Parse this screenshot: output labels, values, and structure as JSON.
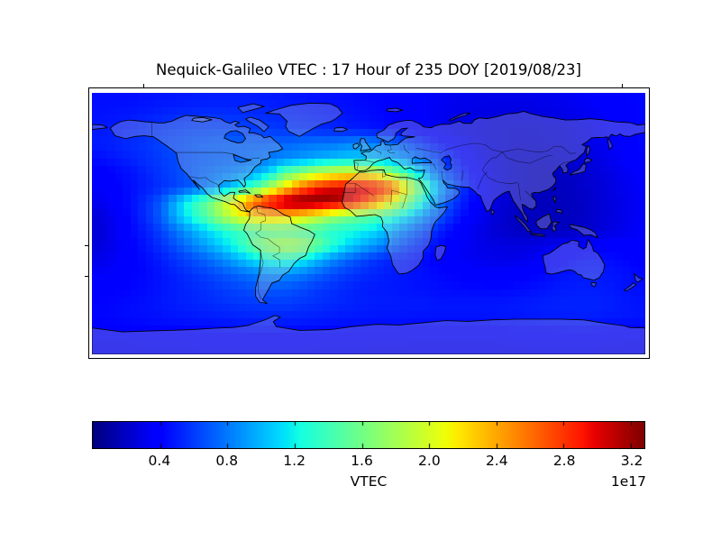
{
  "figure": {
    "title": "Nequick-Galileo VTEC : 17 Hour of 235 DOY [2019/08/23]",
    "background_color": "#ffffff"
  },
  "colorbar": {
    "label": "VTEC",
    "offset_label": "1e17",
    "ticks": [
      "0.4",
      "0.8",
      "1.2",
      "1.6",
      "2.0",
      "2.4",
      "2.8",
      "3.2"
    ],
    "tick_values": [
      0.4,
      0.8,
      1.2,
      1.6,
      2.0,
      2.4,
      2.8,
      3.2
    ],
    "orientation": "horizontal",
    "colormap": "jet"
  },
  "chart_data": {
    "type": "heatmap",
    "title": "Nequick-Galileo VTEC : 17 Hour of 235 DOY [2019/08/23]",
    "colorbar_label": "VTEC",
    "units_exponent": "1e17",
    "colormap": "jet",
    "vmin": 0.0,
    "vmax": 3.28,
    "legend_position": "bottom",
    "grid": false,
    "projection": "equirectangular",
    "lon_range": [
      -180,
      180
    ],
    "lat_range": [
      -90,
      90
    ],
    "cell_size_deg": 10,
    "lat_centers_start": 85,
    "lat_centers_step": -10,
    "lon_centers_start": -175,
    "lon_centers_step": 10,
    "values": [
      [
        0.45,
        0.45,
        0.45,
        0.46,
        0.47,
        0.48,
        0.49,
        0.5,
        0.5,
        0.5,
        0.5,
        0.49,
        0.48,
        0.47,
        0.46,
        0.45,
        0.44,
        0.43,
        0.42,
        0.4,
        0.38,
        0.36,
        0.34,
        0.32,
        0.31,
        0.3,
        0.3,
        0.3,
        0.3,
        0.31,
        0.32,
        0.34,
        0.36,
        0.38,
        0.4,
        0.42
      ],
      [
        0.46,
        0.47,
        0.48,
        0.5,
        0.52,
        0.54,
        0.55,
        0.56,
        0.56,
        0.56,
        0.55,
        0.54,
        0.53,
        0.52,
        0.5,
        0.49,
        0.47,
        0.45,
        0.43,
        0.41,
        0.39,
        0.36,
        0.33,
        0.31,
        0.29,
        0.28,
        0.27,
        0.27,
        0.27,
        0.28,
        0.29,
        0.31,
        0.33,
        0.36,
        0.39,
        0.42
      ],
      [
        0.48,
        0.5,
        0.52,
        0.55,
        0.58,
        0.6,
        0.62,
        0.63,
        0.63,
        0.62,
        0.61,
        0.6,
        0.58,
        0.57,
        0.55,
        0.53,
        0.51,
        0.49,
        0.46,
        0.43,
        0.4,
        0.37,
        0.33,
        0.3,
        0.28,
        0.26,
        0.25,
        0.24,
        0.24,
        0.25,
        0.26,
        0.28,
        0.31,
        0.34,
        0.38,
        0.42
      ],
      [
        0.5,
        0.52,
        0.55,
        0.58,
        0.62,
        0.65,
        0.68,
        0.7,
        0.72,
        0.72,
        0.72,
        0.72,
        0.73,
        0.75,
        0.78,
        0.78,
        0.82,
        0.85,
        0.82,
        0.75,
        0.65,
        0.55,
        0.45,
        0.38,
        0.32,
        0.28,
        0.25,
        0.24,
        0.24,
        0.24,
        0.25,
        0.27,
        0.3,
        0.34,
        0.38,
        0.42
      ],
      [
        0.45,
        0.48,
        0.52,
        0.56,
        0.6,
        0.64,
        0.68,
        0.7,
        0.72,
        0.74,
        0.76,
        0.8,
        0.85,
        0.9,
        0.95,
        1.0,
        1.05,
        1.05,
        1.0,
        0.95,
        0.85,
        0.75,
        0.62,
        0.5,
        0.38,
        0.3,
        0.25,
        0.22,
        0.21,
        0.21,
        0.22,
        0.24,
        0.27,
        0.31,
        0.35,
        0.4
      ],
      [
        0.38,
        0.42,
        0.46,
        0.52,
        0.58,
        0.64,
        0.7,
        0.75,
        0.8,
        0.85,
        0.95,
        1.1,
        1.5,
        1.7,
        1.9,
        2.0,
        2.1,
        2.1,
        2.0,
        1.7,
        1.4,
        1.05,
        0.75,
        0.58,
        0.45,
        0.34,
        0.26,
        0.22,
        0.19,
        0.18,
        0.19,
        0.21,
        0.24,
        0.28,
        0.32,
        0.36
      ],
      [
        0.35,
        0.4,
        0.45,
        0.5,
        0.56,
        0.62,
        0.7,
        0.8,
        0.95,
        1.15,
        1.4,
        1.8,
        2.2,
        2.6,
        2.85,
        3.0,
        3.05,
        3.05,
        2.95,
        2.7,
        2.1,
        1.5,
        1.0,
        0.7,
        0.5,
        0.36,
        0.27,
        0.22,
        0.19,
        0.18,
        0.18,
        0.2,
        0.23,
        0.27,
        0.31,
        0.35
      ],
      [
        0.32,
        0.38,
        0.45,
        0.55,
        0.7,
        1.0,
        1.3,
        1.55,
        1.9,
        2.3,
        2.7,
        3.0,
        3.2,
        3.3,
        3.3,
        3.25,
        3.1,
        2.85,
        2.5,
        2.1,
        1.65,
        1.2,
        0.85,
        0.6,
        0.45,
        0.34,
        0.26,
        0.21,
        0.18,
        0.17,
        0.17,
        0.19,
        0.22,
        0.26,
        0.3,
        0.34
      ],
      [
        0.25,
        0.34,
        0.44,
        0.55,
        0.72,
        1.0,
        1.25,
        1.5,
        1.8,
        2.05,
        2.25,
        2.35,
        2.3,
        2.2,
        2.0,
        1.8,
        1.65,
        1.55,
        1.45,
        1.3,
        1.1,
        0.9,
        0.7,
        0.52,
        0.4,
        0.31,
        0.24,
        0.2,
        0.18,
        0.17,
        0.17,
        0.19,
        0.22,
        0.26,
        0.3,
        0.34
      ],
      [
        0.25,
        0.33,
        0.42,
        0.5,
        0.62,
        0.78,
        0.95,
        1.1,
        1.25,
        1.35,
        1.45,
        1.5,
        1.5,
        1.45,
        1.4,
        1.3,
        1.25,
        1.2,
        1.1,
        0.95,
        0.8,
        0.65,
        0.52,
        0.42,
        0.34,
        0.28,
        0.23,
        0.2,
        0.18,
        0.18,
        0.18,
        0.2,
        0.23,
        0.27,
        0.31,
        0.35
      ],
      [
        0.26,
        0.32,
        0.4,
        0.47,
        0.56,
        0.68,
        0.82,
        0.95,
        1.1,
        1.3,
        1.55,
        1.75,
        1.85,
        1.8,
        1.6,
        1.35,
        1.15,
        1.0,
        0.88,
        0.75,
        0.62,
        0.52,
        0.44,
        0.38,
        0.33,
        0.3,
        0.28,
        0.27,
        0.28,
        0.3,
        0.33,
        0.36,
        0.38,
        0.38,
        0.37,
        0.36
      ],
      [
        0.3,
        0.34,
        0.39,
        0.44,
        0.5,
        0.57,
        0.65,
        0.74,
        0.85,
        0.98,
        1.12,
        1.25,
        1.3,
        1.22,
        1.05,
        0.88,
        0.75,
        0.65,
        0.57,
        0.52,
        0.48,
        0.44,
        0.4,
        0.36,
        0.33,
        0.31,
        0.3,
        0.3,
        0.32,
        0.36,
        0.4,
        0.44,
        0.46,
        0.45,
        0.43,
        0.4
      ],
      [
        0.35,
        0.37,
        0.4,
        0.43,
        0.47,
        0.52,
        0.57,
        0.62,
        0.68,
        0.74,
        0.8,
        0.85,
        0.86,
        0.82,
        0.74,
        0.66,
        0.6,
        0.55,
        0.52,
        0.49,
        0.47,
        0.45,
        0.43,
        0.41,
        0.39,
        0.38,
        0.37,
        0.38,
        0.4,
        0.43,
        0.46,
        0.48,
        0.49,
        0.48,
        0.46,
        0.43
      ],
      [
        0.38,
        0.4,
        0.42,
        0.44,
        0.47,
        0.5,
        0.53,
        0.56,
        0.6,
        0.63,
        0.66,
        0.68,
        0.68,
        0.65,
        0.6,
        0.56,
        0.53,
        0.5,
        0.49,
        0.48,
        0.47,
        0.46,
        0.45,
        0.44,
        0.43,
        0.43,
        0.43,
        0.44,
        0.45,
        0.47,
        0.49,
        0.5,
        0.5,
        0.49,
        0.47,
        0.45
      ],
      [
        0.42,
        0.43,
        0.44,
        0.46,
        0.48,
        0.5,
        0.52,
        0.54,
        0.56,
        0.58,
        0.59,
        0.6,
        0.6,
        0.58,
        0.56,
        0.54,
        0.52,
        0.51,
        0.5,
        0.5,
        0.49,
        0.49,
        0.48,
        0.48,
        0.48,
        0.48,
        0.48,
        0.49,
        0.5,
        0.51,
        0.52,
        0.52,
        0.52,
        0.51,
        0.49,
        0.47
      ],
      [
        0.42,
        0.43,
        0.44,
        0.45,
        0.46,
        0.47,
        0.48,
        0.49,
        0.5,
        0.51,
        0.52,
        0.52,
        0.52,
        0.51,
        0.5,
        0.49,
        0.48,
        0.48,
        0.47,
        0.47,
        0.47,
        0.46,
        0.46,
        0.46,
        0.46,
        0.46,
        0.47,
        0.47,
        0.48,
        0.49,
        0.49,
        0.5,
        0.5,
        0.49,
        0.48,
        0.47
      ],
      [
        0.38,
        0.38,
        0.39,
        0.39,
        0.4,
        0.4,
        0.41,
        0.41,
        0.42,
        0.42,
        0.43,
        0.43,
        0.43,
        0.42,
        0.42,
        0.41,
        0.41,
        0.4,
        0.4,
        0.4,
        0.39,
        0.39,
        0.39,
        0.39,
        0.39,
        0.39,
        0.39,
        0.4,
        0.4,
        0.4,
        0.41,
        0.41,
        0.41,
        0.4,
        0.39,
        0.39
      ],
      [
        0.33,
        0.33,
        0.33,
        0.34,
        0.34,
        0.34,
        0.34,
        0.35,
        0.35,
        0.35,
        0.35,
        0.35,
        0.35,
        0.35,
        0.34,
        0.34,
        0.34,
        0.34,
        0.33,
        0.33,
        0.33,
        0.33,
        0.33,
        0.33,
        0.33,
        0.33,
        0.33,
        0.33,
        0.34,
        0.34,
        0.34,
        0.34,
        0.34,
        0.33,
        0.33,
        0.33
      ]
    ]
  }
}
